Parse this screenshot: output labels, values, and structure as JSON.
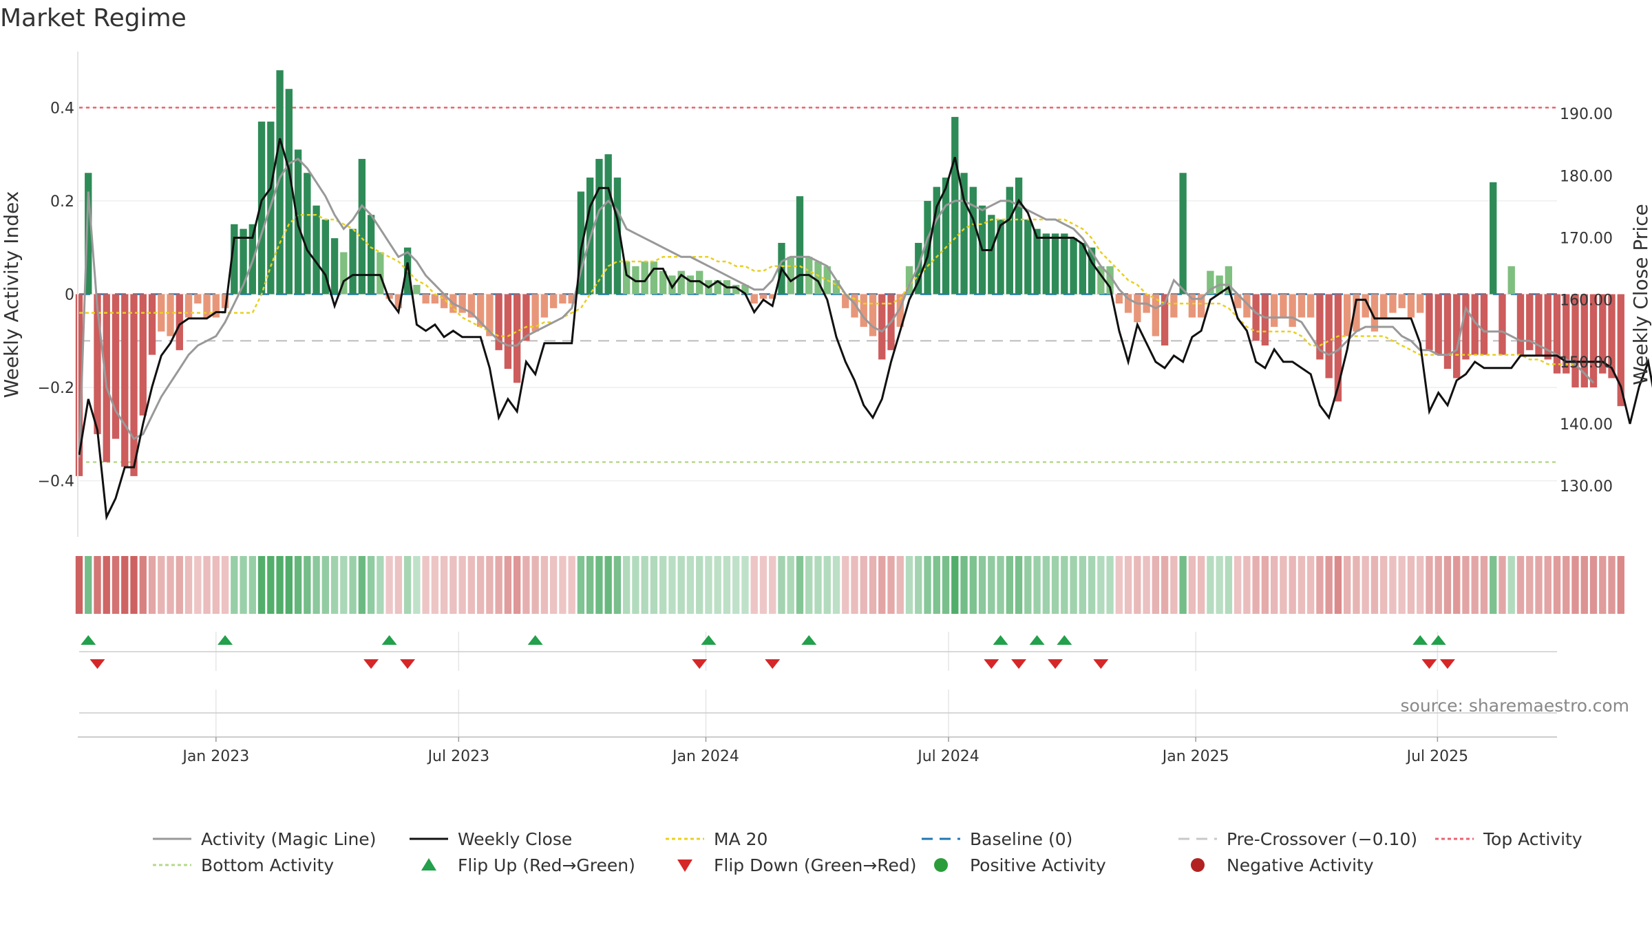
{
  "title": "Market Regime",
  "source_note": "source: sharemaestro.com",
  "colors": {
    "pos_strong": "#2e8b57",
    "pos_light": "#7fbf7f",
    "neg_strong": "#cd5c5c",
    "neg_light": "#e8967a",
    "magic": "#999999",
    "close": "#111111",
    "ma20": "#e8d01f",
    "baseline": "#1f77b4",
    "pre": "#c8c8c8",
    "top": "#e8636f",
    "bottom": "#b5d98a",
    "flip_up": "#22a04b",
    "flip_down": "#d62728",
    "pos_dot": "#2a9d3a",
    "neg_dot": "#b22222"
  },
  "chart_data": {
    "type": "bar",
    "title": "Market Regime",
    "ylabel_left": "Weekly Activity Index",
    "ylabel_right": "Weekly Close Price",
    "ylim_left": [
      -0.52,
      0.52
    ],
    "ylim_right": [
      121.8,
      200
    ],
    "x_range": [
      0,
      162
    ],
    "left_ticks": [
      {
        "v": 0.4,
        "label": "0.4"
      },
      {
        "v": 0.2,
        "label": "0.2"
      },
      {
        "v": 0,
        "label": "0"
      },
      {
        "v": -0.2,
        "label": "−0.2"
      },
      {
        "v": -0.4,
        "label": "−0.4"
      }
    ],
    "right_ticks": [
      {
        "v": 190,
        "label": "190.00"
      },
      {
        "v": 180,
        "label": "180.00"
      },
      {
        "v": 170,
        "label": "170.00"
      },
      {
        "v": 160,
        "label": "160.00"
      },
      {
        "v": 150,
        "label": "150.00"
      },
      {
        "v": 140,
        "label": "140.00"
      },
      {
        "v": 130,
        "label": "130.00"
      }
    ],
    "x_ticks": [
      {
        "w": 15,
        "label": "Jan 2023"
      },
      {
        "w": 41.6,
        "label": "Jul 2023"
      },
      {
        "w": 68.7,
        "label": "Jan 2024"
      },
      {
        "w": 95.3,
        "label": "Jul 2024"
      },
      {
        "w": 122.4,
        "label": "Jan 2025"
      },
      {
        "w": 148.9,
        "label": "Jul 2025"
      }
    ],
    "reference_lines": {
      "top": 0.4,
      "bottom": -0.36,
      "pre_crossover": -0.1,
      "baseline": 0
    },
    "activity": [
      -0.39,
      0.26,
      -0.3,
      -0.36,
      -0.31,
      -0.37,
      -0.39,
      -0.26,
      -0.13,
      -0.08,
      -0.09,
      -0.12,
      -0.05,
      -0.02,
      -0.05,
      -0.05,
      -0.03,
      0.15,
      0.14,
      0.15,
      0.37,
      0.37,
      0.48,
      0.44,
      0.31,
      0.26,
      0.19,
      0.16,
      0.12,
      0.09,
      0.14,
      0.29,
      0.17,
      0.09,
      -0.01,
      -0.03,
      0.1,
      0.02,
      -0.02,
      -0.02,
      -0.03,
      -0.04,
      -0.04,
      -0.05,
      -0.07,
      -0.09,
      -0.12,
      -0.16,
      -0.19,
      -0.1,
      -0.08,
      -0.05,
      -0.03,
      -0.02,
      -0.02,
      0.22,
      0.25,
      0.29,
      0.3,
      0.25,
      0.07,
      0.06,
      0.07,
      0.07,
      0.05,
      0.04,
      0.05,
      0.04,
      0.05,
      0.03,
      0.03,
      0.03,
      0.02,
      0.02,
      -0.02,
      -0.01,
      -0.01,
      0.11,
      0.08,
      0.21,
      0.08,
      0.07,
      0.06,
      0.03,
      -0.03,
      -0.05,
      -0.07,
      -0.09,
      -0.14,
      -0.12,
      -0.07,
      0.06,
      0.11,
      0.2,
      0.23,
      0.25,
      0.38,
      0.26,
      0.23,
      0.19,
      0.17,
      0.16,
      0.23,
      0.25,
      0.16,
      0.14,
      0.13,
      0.13,
      0.13,
      0.12,
      0.11,
      0.1,
      0.06,
      0.06,
      -0.02,
      -0.04,
      -0.06,
      -0.04,
      -0.09,
      -0.11,
      -0.05,
      0.26,
      -0.05,
      -0.05,
      0.05,
      0.04,
      0.06,
      -0.03,
      -0.05,
      -0.1,
      -0.11,
      -0.07,
      -0.05,
      -0.07,
      -0.05,
      -0.05,
      -0.14,
      -0.18,
      -0.23,
      -0.09,
      -0.08,
      -0.05,
      -0.08,
      -0.05,
      -0.04,
      -0.03,
      -0.05,
      -0.04,
      -0.12,
      -0.13,
      -0.16,
      -0.18,
      -0.14,
      -0.13,
      -0.13,
      0.24,
      -0.13,
      0.06,
      -0.13,
      -0.12,
      -0.13,
      -0.14,
      -0.17,
      -0.17,
      -0.2,
      -0.2,
      -0.2,
      -0.17,
      -0.18,
      -0.24
    ],
    "weekly_close": [
      135,
      144,
      139,
      125,
      128,
      133,
      133,
      140,
      146,
      151,
      153,
      156,
      157,
      157,
      157,
      158,
      158,
      170,
      170,
      170,
      176,
      178,
      186,
      181,
      172,
      168,
      166,
      164,
      159,
      163,
      164,
      164,
      164,
      164,
      160,
      158,
      166,
      156,
      155,
      156,
      154,
      155,
      154,
      154,
      154,
      149,
      141,
      144,
      142,
      150,
      148,
      153,
      153,
      153,
      153,
      168,
      175,
      178,
      178,
      173,
      164,
      163,
      163,
      165,
      165,
      162,
      164,
      163,
      163,
      162,
      163,
      162,
      162,
      161,
      158,
      160,
      159,
      165,
      163,
      164,
      164,
      163,
      160,
      154,
      150,
      147,
      143,
      141,
      144,
      150,
      155,
      160,
      163,
      167,
      175,
      178,
      183,
      176,
      173,
      168,
      168,
      172,
      173,
      176,
      174,
      170,
      170,
      170,
      170,
      170,
      169,
      166,
      164,
      162,
      155,
      150,
      156,
      153,
      150,
      149,
      151,
      150,
      154,
      155,
      160,
      161,
      162,
      157,
      155,
      150,
      149,
      152,
      150,
      150,
      149,
      148,
      143,
      141,
      146,
      152,
      160,
      160,
      157,
      157,
      157,
      157,
      157,
      153,
      142,
      145,
      143,
      147,
      148,
      150,
      149,
      149,
      149,
      149,
      151,
      151,
      151,
      151,
      151,
      150,
      150,
      150,
      150,
      150,
      149,
      146,
      140,
      146,
      150,
      142,
      141
    ],
    "magic_line": [
      -0.35,
      0.22,
      -0.03,
      -0.2,
      -0.25,
      -0.28,
      -0.31,
      -0.3,
      -0.26,
      -0.22,
      -0.19,
      -0.16,
      -0.13,
      -0.11,
      -0.1,
      -0.09,
      -0.06,
      -0.02,
      0.02,
      0.07,
      0.13,
      0.19,
      0.25,
      0.28,
      0.29,
      0.27,
      0.24,
      0.21,
      0.17,
      0.14,
      0.16,
      0.19,
      0.17,
      0.14,
      0.11,
      0.08,
      0.09,
      0.07,
      0.04,
      0.02,
      0.0,
      -0.02,
      -0.03,
      -0.04,
      -0.06,
      -0.08,
      -0.1,
      -0.11,
      -0.11,
      -0.09,
      -0.08,
      -0.07,
      -0.06,
      -0.05,
      -0.03,
      0.05,
      0.12,
      0.18,
      0.2,
      0.18,
      0.14,
      0.13,
      0.12,
      0.11,
      0.1,
      0.09,
      0.08,
      0.08,
      0.07,
      0.06,
      0.05,
      0.04,
      0.03,
      0.02,
      0.01,
      0.01,
      0.03,
      0.07,
      0.08,
      0.08,
      0.08,
      0.07,
      0.06,
      0.03,
      0.0,
      -0.02,
      -0.05,
      -0.07,
      -0.08,
      -0.06,
      -0.03,
      0.02,
      0.06,
      0.12,
      0.16,
      0.19,
      0.2,
      0.2,
      0.19,
      0.18,
      0.19,
      0.2,
      0.2,
      0.19,
      0.18,
      0.17,
      0.16,
      0.16,
      0.15,
      0.14,
      0.12,
      0.09,
      0.06,
      0.04,
      0.01,
      -0.01,
      -0.02,
      -0.02,
      -0.03,
      -0.02,
      0.03,
      0.01,
      -0.01,
      -0.01,
      0.01,
      0.02,
      0.02,
      0.0,
      -0.02,
      -0.04,
      -0.05,
      -0.05,
      -0.05,
      -0.05,
      -0.06,
      -0.09,
      -0.12,
      -0.13,
      -0.12,
      -0.1,
      -0.08,
      -0.07,
      -0.07,
      -0.07,
      -0.07,
      -0.09,
      -0.1,
      -0.12,
      -0.12,
      -0.13,
      -0.13,
      -0.12,
      -0.03,
      -0.06,
      -0.08,
      -0.08,
      -0.08,
      -0.09,
      -0.1,
      -0.1,
      -0.11,
      -0.12,
      -0.13,
      -0.14,
      -0.15,
      -0.17,
      -0.19
    ],
    "ma20": [
      -0.04,
      -0.04,
      -0.04,
      -0.04,
      -0.04,
      -0.04,
      -0.04,
      -0.04,
      -0.04,
      -0.04,
      -0.04,
      -0.04,
      -0.04,
      -0.04,
      -0.04,
      -0.04,
      -0.04,
      -0.04,
      -0.04,
      -0.04,
      0.0,
      0.06,
      0.11,
      0.15,
      0.17,
      0.17,
      0.17,
      0.16,
      0.16,
      0.15,
      0.14,
      0.12,
      0.1,
      0.09,
      0.08,
      0.07,
      0.05,
      0.03,
      0.02,
      0.0,
      -0.01,
      -0.03,
      -0.05,
      -0.06,
      -0.07,
      -0.08,
      -0.09,
      -0.09,
      -0.08,
      -0.07,
      -0.07,
      -0.06,
      -0.06,
      -0.05,
      -0.04,
      -0.03,
      0.0,
      0.03,
      0.06,
      0.07,
      0.07,
      0.07,
      0.07,
      0.07,
      0.08,
      0.08,
      0.08,
      0.08,
      0.08,
      0.08,
      0.07,
      0.07,
      0.06,
      0.06,
      0.05,
      0.05,
      0.06,
      0.06,
      0.06,
      0.06,
      0.05,
      0.04,
      0.03,
      0.02,
      0.0,
      -0.01,
      -0.02,
      -0.02,
      -0.02,
      -0.02,
      -0.01,
      0.02,
      0.04,
      0.06,
      0.08,
      0.1,
      0.12,
      0.14,
      0.15,
      0.15,
      0.16,
      0.16,
      0.16,
      0.16,
      0.16,
      0.16,
      0.16,
      0.16,
      0.16,
      0.15,
      0.14,
      0.12,
      0.09,
      0.07,
      0.05,
      0.03,
      0.02,
      0.0,
      -0.01,
      -0.02,
      -0.02,
      -0.02,
      -0.02,
      -0.02,
      -0.02,
      -0.02,
      -0.03,
      -0.05,
      -0.07,
      -0.08,
      -0.08,
      -0.08,
      -0.08,
      -0.08,
      -0.09,
      -0.11,
      -0.11,
      -0.1,
      -0.09,
      -0.09,
      -0.09,
      -0.09,
      -0.09,
      -0.09,
      -0.1,
      -0.11,
      -0.12,
      -0.13,
      -0.13,
      -0.13,
      -0.13,
      -0.13,
      -0.13,
      -0.13,
      -0.13,
      -0.13,
      -0.13,
      -0.13,
      -0.13,
      -0.14,
      -0.14,
      -0.15,
      -0.15,
      -0.15,
      -0.15
    ],
    "flips_up": [
      1,
      16,
      34,
      50,
      69,
      80,
      101,
      105,
      108,
      147,
      149
    ],
    "flips_down": [
      2,
      32,
      36,
      68,
      76,
      100,
      103,
      107,
      112,
      148,
      150
    ]
  },
  "legend": [
    {
      "key": "magic",
      "label": "Activity (Magic Line)"
    },
    {
      "key": "close",
      "label": "Weekly Close"
    },
    {
      "key": "ma20",
      "label": "MA 20"
    },
    {
      "key": "baseline",
      "label": "Baseline (0)"
    },
    {
      "key": "pre",
      "label": "Pre-Crossover (−0.10)"
    },
    {
      "key": "top",
      "label": "Top Activity"
    },
    {
      "key": "bottom",
      "label": "Bottom Activity"
    },
    {
      "key": "flip_up",
      "label": "Flip Up (Red→Green)"
    },
    {
      "key": "flip_down",
      "label": "Flip Down (Green→Red)"
    },
    {
      "key": "pos_dot",
      "label": "Positive Activity"
    },
    {
      "key": "neg_dot",
      "label": "Negative Activity"
    }
  ]
}
